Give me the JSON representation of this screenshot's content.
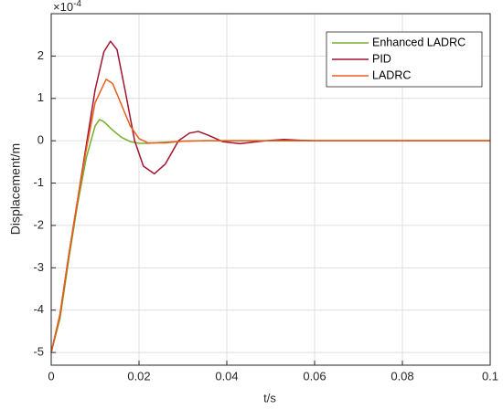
{
  "chart_data": {
    "type": "line",
    "x_label": "t/s",
    "y_label": "Displacement/m",
    "y_exponent": {
      "base": "×10",
      "power": "-4"
    },
    "xlim": [
      0,
      0.1
    ],
    "xticks": [
      0,
      0.02,
      0.04,
      0.06,
      0.08,
      0.1
    ],
    "ylim": [
      -5.3,
      3
    ],
    "yticks": [
      -5,
      -4,
      -3,
      -2,
      -1,
      0,
      1,
      2
    ],
    "grid": true,
    "legend": "upper-right",
    "series": [
      {
        "name": "Enhanced LADRC",
        "color": "#77ac30",
        "x": [
          0,
          0.002,
          0.004,
          0.006,
          0.008,
          0.01,
          0.011,
          0.012,
          0.014,
          0.016,
          0.018,
          0.02,
          0.022,
          0.025,
          0.03,
          0.035,
          0.04,
          0.06,
          0.08,
          0.1
        ],
        "values": [
          -5,
          -4.2,
          -2.8,
          -1.5,
          -0.4,
          0.35,
          0.5,
          0.45,
          0.25,
          0.08,
          -0.02,
          -0.06,
          -0.06,
          -0.04,
          -0.01,
          0,
          0,
          0,
          0,
          0
        ]
      },
      {
        "name": "PID",
        "color": "#a2142f",
        "x": [
          0,
          0.002,
          0.004,
          0.006,
          0.008,
          0.01,
          0.012,
          0.0135,
          0.015,
          0.017,
          0.019,
          0.021,
          0.0235,
          0.026,
          0.029,
          0.0315,
          0.0335,
          0.036,
          0.039,
          0.043,
          0.047,
          0.05,
          0.053,
          0.057,
          0.06,
          0.08,
          0.1
        ],
        "values": [
          -5,
          -4.1,
          -2.7,
          -1.4,
          -0.1,
          1.2,
          2.1,
          2.35,
          2.15,
          1.1,
          0,
          -0.6,
          -0.78,
          -0.55,
          0,
          0.18,
          0.22,
          0.12,
          -0.02,
          -0.07,
          -0.02,
          0.01,
          0.03,
          0.01,
          0,
          0,
          0
        ]
      },
      {
        "name": "LADRC",
        "color": "#ea5e1a",
        "x": [
          0,
          0.002,
          0.004,
          0.006,
          0.008,
          0.01,
          0.0125,
          0.014,
          0.016,
          0.018,
          0.02,
          0.022,
          0.026,
          0.03,
          0.035,
          0.1
        ],
        "values": [
          -5,
          -4.1,
          -2.7,
          -1.4,
          -0.2,
          0.9,
          1.45,
          1.35,
          0.85,
          0.35,
          0.05,
          -0.05,
          -0.05,
          -0.01,
          0,
          0
        ]
      }
    ]
  }
}
